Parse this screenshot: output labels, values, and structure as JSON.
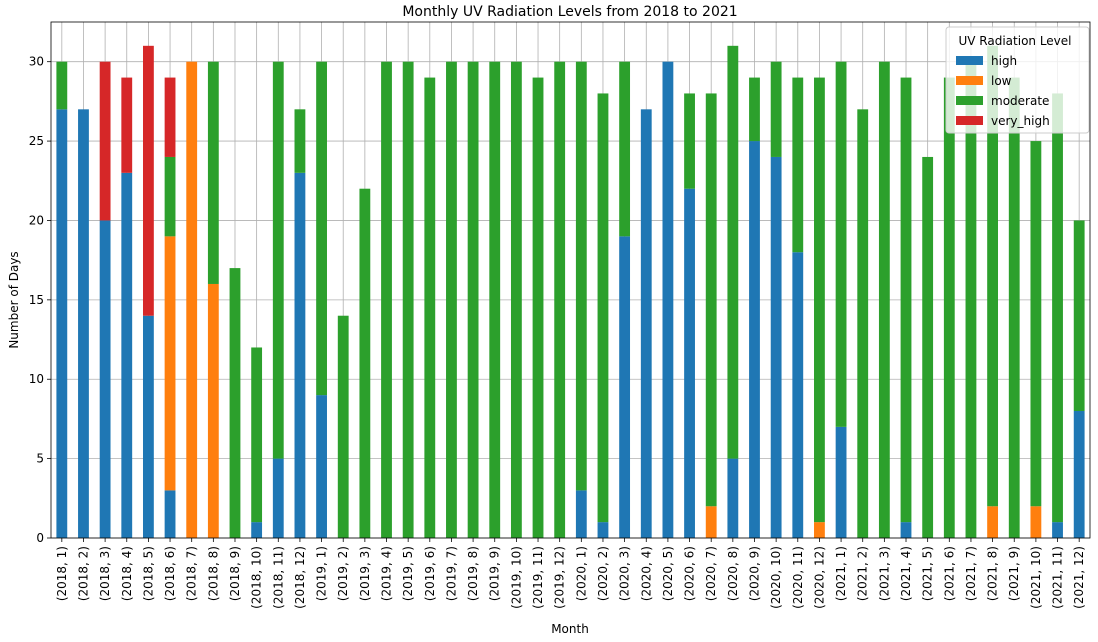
{
  "chart_data": {
    "type": "bar",
    "stacked": true,
    "title": "Monthly UV Radiation Levels from 2018 to 2021",
    "xlabel": "Month",
    "ylabel": "Number of Days",
    "ylim": [
      0,
      32.5
    ],
    "yticks": [
      0,
      5,
      10,
      15,
      20,
      25,
      30
    ],
    "grid": true,
    "legend": {
      "title": "UV Radiation Level",
      "placement": "top-right"
    },
    "categories": [
      "(2018, 1)",
      "(2018, 2)",
      "(2018, 3)",
      "(2018, 4)",
      "(2018, 5)",
      "(2018, 6)",
      "(2018, 7)",
      "(2018, 8)",
      "(2018, 9)",
      "(2018, 10)",
      "(2018, 11)",
      "(2018, 12)",
      "(2019, 1)",
      "(2019, 2)",
      "(2019, 3)",
      "(2019, 4)",
      "(2019, 5)",
      "(2019, 6)",
      "(2019, 7)",
      "(2019, 8)",
      "(2019, 9)",
      "(2019, 10)",
      "(2019, 11)",
      "(2019, 12)",
      "(2020, 1)",
      "(2020, 2)",
      "(2020, 3)",
      "(2020, 4)",
      "(2020, 5)",
      "(2020, 6)",
      "(2020, 7)",
      "(2020, 8)",
      "(2020, 9)",
      "(2020, 10)",
      "(2020, 11)",
      "(2020, 12)",
      "(2021, 1)",
      "(2021, 2)",
      "(2021, 3)",
      "(2021, 4)",
      "(2021, 5)",
      "(2021, 6)",
      "(2021, 7)",
      "(2021, 8)",
      "(2021, 9)",
      "(2021, 10)",
      "(2021, 11)",
      "(2021, 12)"
    ],
    "series": [
      {
        "name": "high",
        "color": "#1f77b4",
        "values": [
          27,
          27,
          20,
          23,
          14,
          3,
          0,
          0,
          0,
          1,
          5,
          23,
          9,
          0,
          0,
          0,
          0,
          0,
          0,
          0,
          0,
          0,
          0,
          0,
          3,
          1,
          19,
          27,
          30,
          22,
          0,
          5,
          25,
          24,
          18,
          0,
          7,
          0,
          0,
          1,
          0,
          0,
          0,
          0,
          0,
          0,
          1,
          8
        ]
      },
      {
        "name": "low",
        "color": "#ff7f0e",
        "values": [
          0,
          0,
          0,
          0,
          0,
          16,
          30,
          16,
          0,
          0,
          0,
          0,
          0,
          0,
          0,
          0,
          0,
          0,
          0,
          0,
          0,
          0,
          0,
          0,
          0,
          0,
          0,
          0,
          0,
          0,
          2,
          0,
          0,
          0,
          0,
          1,
          0,
          0,
          0,
          0,
          0,
          0,
          0,
          2,
          0,
          2,
          0,
          0
        ]
      },
      {
        "name": "moderate",
        "color": "#2ca02c",
        "values": [
          3,
          0,
          0,
          0,
          0,
          5,
          0,
          14,
          17,
          11,
          25,
          4,
          21,
          14,
          22,
          30,
          30,
          29,
          30,
          30,
          30,
          30,
          29,
          30,
          27,
          27,
          11,
          0,
          0,
          6,
          26,
          26,
          4,
          6,
          11,
          28,
          23,
          27,
          30,
          28,
          24,
          29,
          30,
          29,
          29,
          23,
          27,
          12
        ]
      },
      {
        "name": "very_high",
        "color": "#d62728",
        "values": [
          0,
          0,
          10,
          6,
          17,
          5,
          0,
          0,
          0,
          0,
          0,
          0,
          0,
          0,
          0,
          0,
          0,
          0,
          0,
          0,
          0,
          0,
          0,
          0,
          0,
          0,
          0,
          0,
          0,
          0,
          0,
          0,
          0,
          0,
          0,
          0,
          0,
          0,
          0,
          0,
          0,
          0,
          0,
          0,
          0,
          0,
          0,
          0
        ]
      }
    ]
  }
}
